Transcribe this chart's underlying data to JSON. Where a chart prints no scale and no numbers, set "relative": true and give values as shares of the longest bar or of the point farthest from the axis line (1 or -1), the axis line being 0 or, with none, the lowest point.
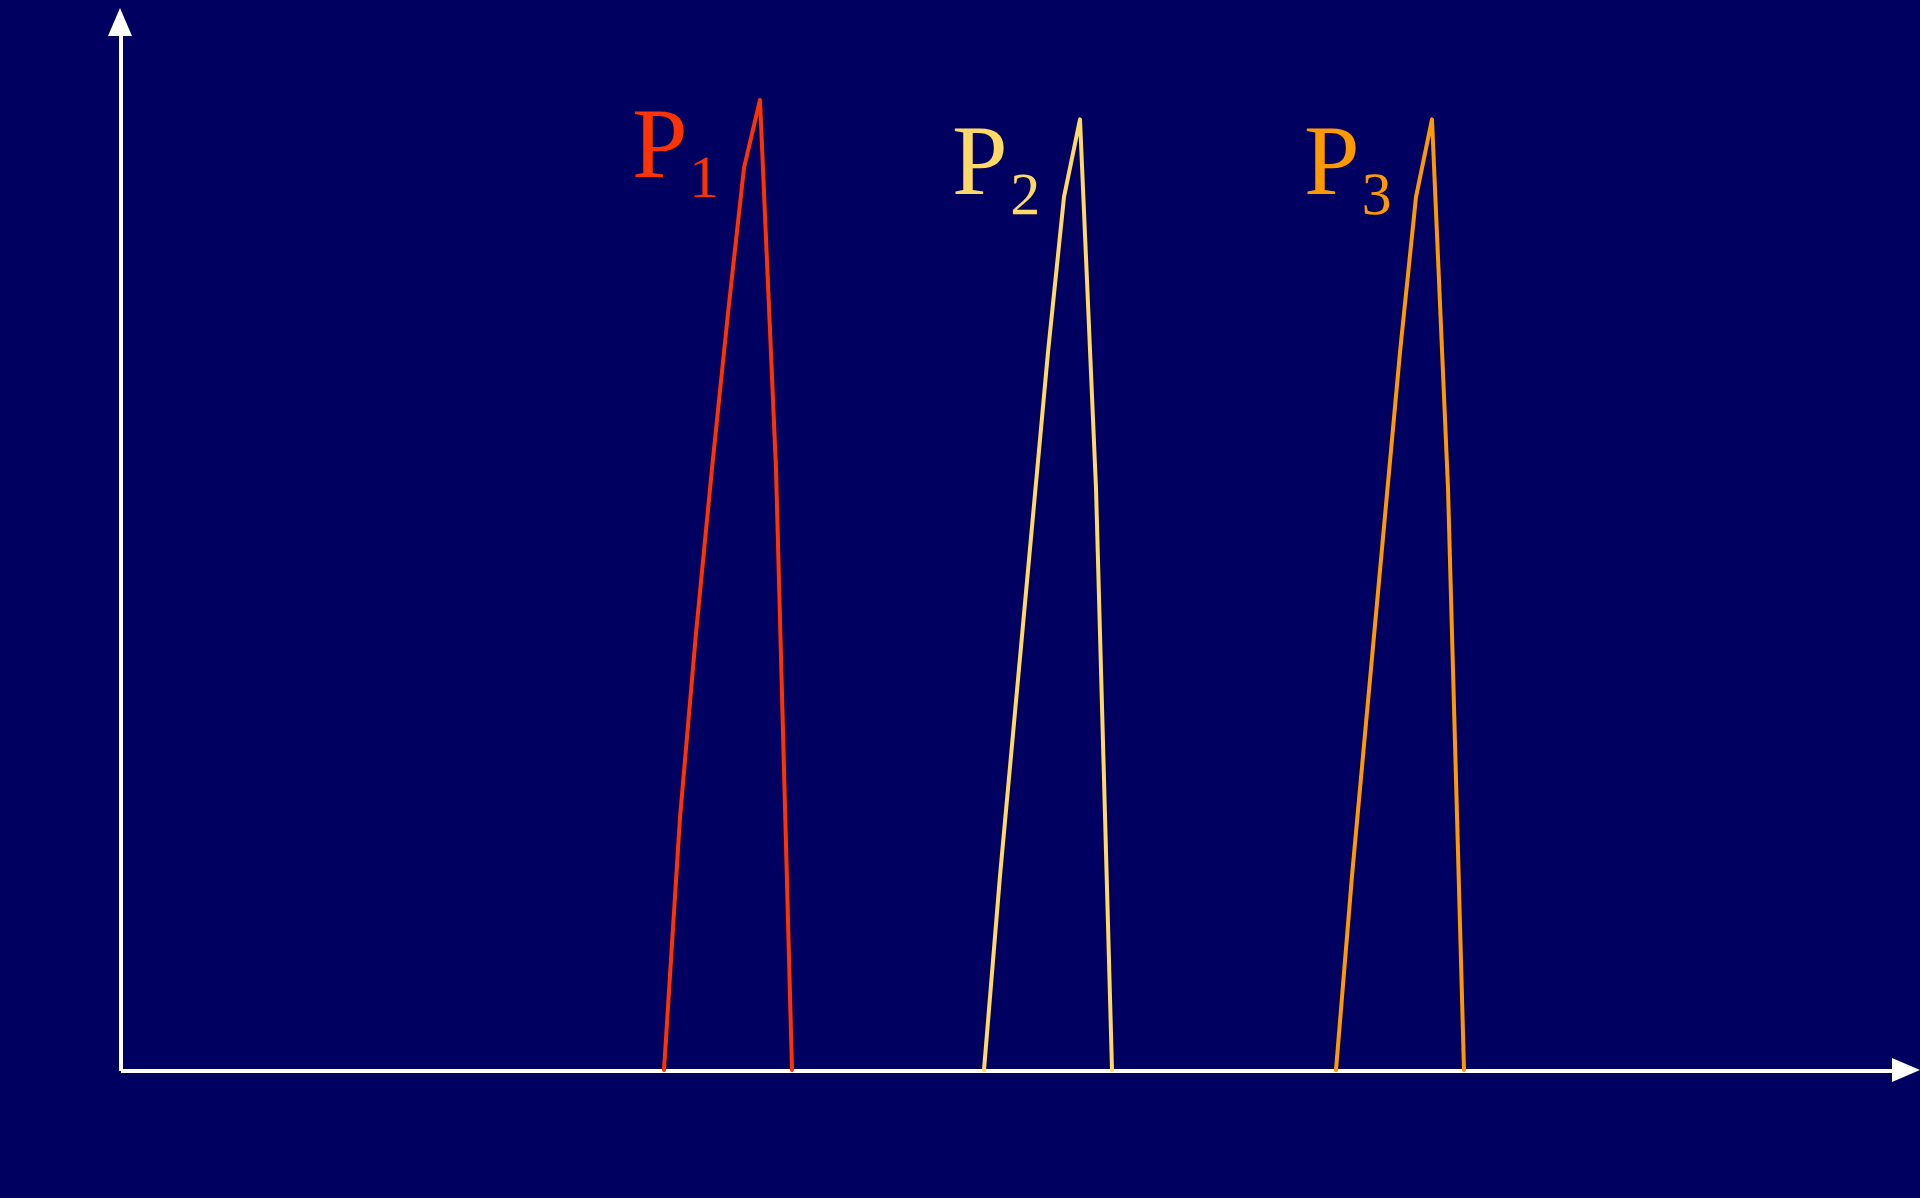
{
  "chart_data": {
    "type": "line",
    "relative": true,
    "legend": false,
    "categories": [
      null,
      null,
      null,
      null,
      null,
      null,
      null,
      null,
      null,
      null,
      null,
      null,
      null,
      null,
      null,
      null,
      null,
      null,
      null,
      null,
      null,
      null,
      null,
      null,
      null,
      null,
      null,
      null,
      null,
      null,
      null,
      null,
      null,
      null,
      null,
      null,
      null,
      null,
      null,
      null,
      null,
      null,
      null,
      null,
      null,
      null,
      null,
      null,
      null,
      null,
      null,
      null,
      null,
      null,
      null,
      null,
      null,
      null,
      null,
      null,
      null,
      null,
      null,
      null,
      null,
      null,
      null,
      null,
      null,
      null,
      null,
      null,
      null,
      null,
      null,
      null,
      null,
      null,
      null,
      null,
      null,
      null,
      null,
      null,
      null,
      null,
      null,
      null,
      null,
      null,
      null,
      null,
      null,
      null,
      null,
      null,
      null,
      null,
      null,
      null,
      null,
      null,
      null,
      null,
      null,
      null,
      null,
      null,
      null,
      null,
      null,
      null
    ],
    "series": [
      {
        "name": "P₁",
        "color": "#ff3300",
        "values": [
          null,
          null,
          null,
          null,
          null,
          null,
          null,
          null,
          null,
          null,
          null,
          null,
          null,
          null,
          null,
          null,
          null,
          null,
          null,
          null,
          null,
          null,
          null,
          null,
          null,
          null,
          null,
          null,
          null,
          null,
          null,
          null,
          null,
          null,
          0,
          0.26,
          0.45,
          0.62,
          0.78,
          0.93,
          1,
          0.62,
          0,
          null,
          null,
          null,
          null,
          null,
          null,
          null,
          null,
          null,
          null,
          null,
          null,
          null,
          null,
          null,
          null,
          null,
          null,
          null,
          null,
          null,
          null,
          null,
          null,
          null,
          null,
          null,
          null,
          null,
          null,
          null,
          null,
          null,
          null,
          null,
          null,
          null,
          null,
          null,
          null,
          null,
          null,
          null,
          null,
          null,
          null,
          null,
          null,
          null,
          null,
          null,
          null,
          null,
          null,
          null,
          null,
          null,
          null,
          null,
          null,
          null,
          null,
          null,
          null,
          null,
          null,
          null,
          null,
          null
        ]
      },
      {
        "name": "P₂",
        "color": "#ffd966",
        "values": [
          null,
          null,
          null,
          null,
          null,
          null,
          null,
          null,
          null,
          null,
          null,
          null,
          null,
          null,
          null,
          null,
          null,
          null,
          null,
          null,
          null,
          null,
          null,
          null,
          null,
          null,
          null,
          null,
          null,
          null,
          null,
          null,
          null,
          null,
          null,
          null,
          null,
          null,
          null,
          null,
          null,
          null,
          null,
          null,
          null,
          null,
          null,
          null,
          null,
          null,
          null,
          null,
          null,
          null,
          0,
          0.2,
          0.38,
          0.56,
          0.74,
          0.9,
          0.98,
          0.6,
          0,
          null,
          null,
          null,
          null,
          null,
          null,
          null,
          null,
          null,
          null,
          null,
          null,
          null,
          null,
          null,
          null,
          null,
          null,
          null,
          null,
          null,
          null,
          null,
          null,
          null,
          null,
          null,
          null,
          null,
          null,
          null,
          null,
          null,
          null,
          null,
          null,
          null,
          null,
          null,
          null,
          null,
          null,
          null,
          null,
          null,
          null,
          null,
          null,
          null
        ]
      },
      {
        "name": "P₃",
        "color": "#ff9900",
        "values": [
          null,
          null,
          null,
          null,
          null,
          null,
          null,
          null,
          null,
          null,
          null,
          null,
          null,
          null,
          null,
          null,
          null,
          null,
          null,
          null,
          null,
          null,
          null,
          null,
          null,
          null,
          null,
          null,
          null,
          null,
          null,
          null,
          null,
          null,
          null,
          null,
          null,
          null,
          null,
          null,
          null,
          null,
          null,
          null,
          null,
          null,
          null,
          null,
          null,
          null,
          null,
          null,
          null,
          null,
          null,
          null,
          null,
          null,
          null,
          null,
          null,
          null,
          null,
          null,
          null,
          null,
          null,
          null,
          null,
          null,
          null,
          null,
          null,
          null,
          null,
          null,
          0,
          0.2,
          0.38,
          0.56,
          0.74,
          0.9,
          0.98,
          0.6,
          0,
          null,
          null,
          null,
          null,
          null,
          null,
          null,
          null,
          null,
          null,
          null,
          null,
          null,
          null,
          null,
          null,
          null,
          null,
          null,
          null,
          null,
          null,
          null,
          null,
          null,
          null,
          null
        ]
      }
    ]
  }
}
